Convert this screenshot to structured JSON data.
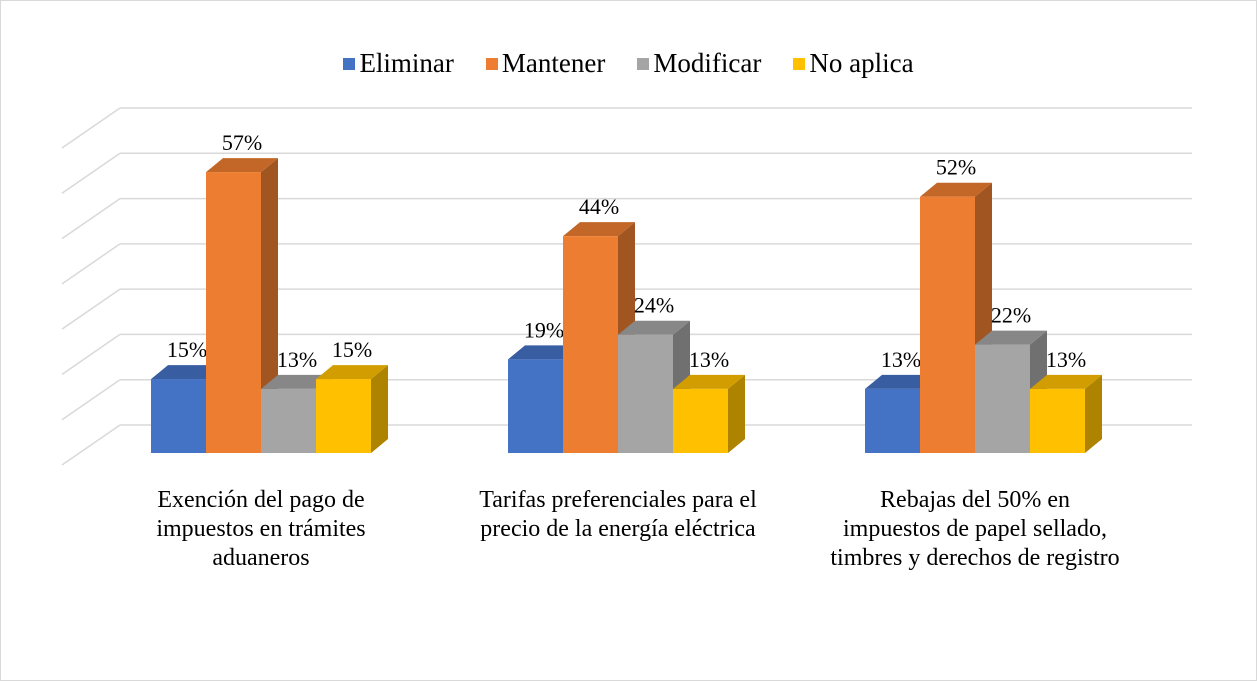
{
  "chart_data": {
    "type": "bar3d",
    "categories": [
      "Exención del pago de impuestos en trámites aduaneros",
      "Tarifas preferenciales para el precio de la energía eléctrica",
      "Rebajas del 50% en impuestos de papel sellado, timbres y derechos de registro"
    ],
    "series": [
      {
        "name": "Eliminar",
        "color": "#4472c4",
        "values": [
          15,
          19,
          13
        ],
        "value_labels": [
          "15%",
          "19%",
          "13%"
        ]
      },
      {
        "name": "Mantener",
        "color": "#ed7d31",
        "values": [
          57,
          44,
          52
        ],
        "value_labels": [
          "57%",
          "44%",
          "52%"
        ]
      },
      {
        "name": "Modificar",
        "color": "#a5a5a5",
        "values": [
          13,
          24,
          22
        ],
        "value_labels": [
          "13%",
          "24%",
          "22%"
        ]
      },
      {
        "name": "No aplica",
        "color": "#ffc000",
        "values": [
          15,
          13,
          13
        ],
        "value_labels": [
          "15%",
          "13%",
          "13%"
        ]
      }
    ],
    "ylim": [
      0,
      70
    ],
    "yticks": [
      0,
      10,
      20,
      30,
      40,
      50,
      60,
      70
    ],
    "grid": true,
    "legend": "top"
  }
}
